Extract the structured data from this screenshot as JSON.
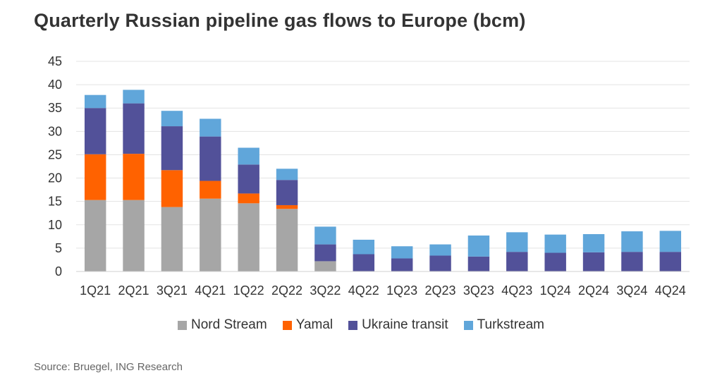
{
  "title": "Quarterly Russian pipeline gas flows to Europe (bcm)",
  "source": "Source: Bruegel, ING Research",
  "colors": {
    "nord_stream": "#a6a6a6",
    "yamal": "#ff6200",
    "ukraine_transit": "#525199",
    "turkstream": "#60a6da",
    "grid": "#e3e3e3"
  },
  "chart_data": {
    "type": "bar",
    "stacked": true,
    "title": "Quarterly Russian pipeline gas flows to Europe (bcm)",
    "xlabel": "",
    "ylabel": "",
    "ylim": [
      0,
      45
    ],
    "yticks": [
      0,
      5,
      10,
      15,
      20,
      25,
      30,
      35,
      40,
      45
    ],
    "grid": true,
    "legend_position": "bottom",
    "categories": [
      "1Q21",
      "2Q21",
      "3Q21",
      "4Q21",
      "1Q22",
      "2Q22",
      "3Q22",
      "4Q22",
      "1Q23",
      "2Q23",
      "3Q23",
      "4Q23",
      "1Q24",
      "2Q24",
      "3Q24",
      "4Q24"
    ],
    "series": [
      {
        "name": "Nord Stream",
        "color": "#a6a6a6",
        "values": [
          15.3,
          15.3,
          13.8,
          15.6,
          14.6,
          13.4,
          2.2,
          0,
          0,
          0,
          0,
          0,
          0,
          0,
          0,
          0
        ]
      },
      {
        "name": "Yamal",
        "color": "#ff6200",
        "values": [
          9.8,
          9.9,
          7.9,
          3.8,
          2.1,
          0.8,
          0,
          0,
          0,
          0,
          0,
          0,
          0,
          0,
          0,
          0
        ]
      },
      {
        "name": "Ukraine transit",
        "color": "#525199",
        "values": [
          9.9,
          10.8,
          9.4,
          9.5,
          6.2,
          5.4,
          3.6,
          3.7,
          2.8,
          3.4,
          3.2,
          4.2,
          4.0,
          4.1,
          4.2,
          4.2
        ]
      },
      {
        "name": "Turkstream",
        "color": "#60a6da",
        "values": [
          2.8,
          2.9,
          3.3,
          3.8,
          3.6,
          2.4,
          3.8,
          3.1,
          2.6,
          2.4,
          4.5,
          4.2,
          3.9,
          3.9,
          4.4,
          4.5
        ]
      }
    ]
  }
}
